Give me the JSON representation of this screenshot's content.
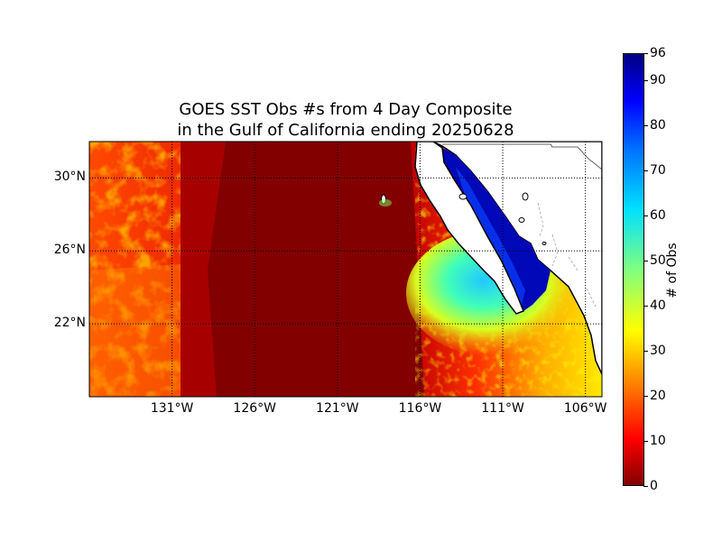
{
  "title": {
    "line1": "GOES SST Obs #s from 4 Day Composite",
    "line2": "in the Gulf of California ending 20250628"
  },
  "map": {
    "lat_range": [
      18,
      32
    ],
    "lon_range": [
      -136,
      -105
    ],
    "lat_ticks": [
      {
        "value": 30,
        "label": "30°N"
      },
      {
        "value": 26,
        "label": "26°N"
      },
      {
        "value": 22,
        "label": "22°N"
      }
    ],
    "lon_ticks": [
      {
        "value": -131,
        "label": "131°W"
      },
      {
        "value": -126,
        "label": "126°W"
      },
      {
        "value": -121,
        "label": "121°W"
      },
      {
        "value": -116,
        "label": "116°W"
      },
      {
        "value": -111,
        "label": "111°W"
      },
      {
        "value": -106,
        "label": "106°W"
      }
    ],
    "land_color": "#ffffff",
    "coast_color": "#000000",
    "colormap": "jet"
  },
  "colorbar": {
    "label": "# of Obs",
    "min": 0,
    "max": 96,
    "ticks": [
      {
        "value": 0,
        "label": "0"
      },
      {
        "value": 10,
        "label": "10"
      },
      {
        "value": 20,
        "label": "20"
      },
      {
        "value": 30,
        "label": "30"
      },
      {
        "value": 40,
        "label": "40"
      },
      {
        "value": 50,
        "label": "50"
      },
      {
        "value": 60,
        "label": "60"
      },
      {
        "value": 70,
        "label": "70"
      },
      {
        "value": 80,
        "label": "80"
      },
      {
        "value": 90,
        "label": "90"
      },
      {
        "value": 96,
        "label": "96"
      }
    ]
  }
}
